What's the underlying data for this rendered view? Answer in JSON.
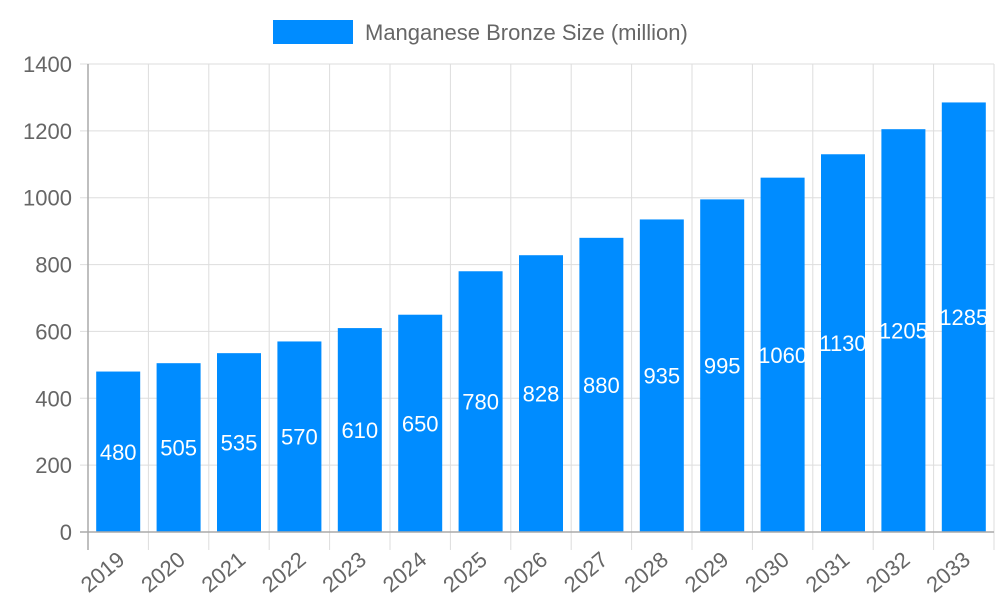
{
  "chart_data": {
    "type": "bar",
    "categories": [
      "2019",
      "2020",
      "2021",
      "2022",
      "2023",
      "2024",
      "2025",
      "2026",
      "2027",
      "2028",
      "2029",
      "2030",
      "2031",
      "2032",
      "2033"
    ],
    "series": [
      {
        "name": "Manganese Bronze Size (million)",
        "values": [
          480,
          505,
          535,
          570,
          610,
          650,
          780,
          828,
          880,
          935,
          995,
          1060,
          1130,
          1205,
          1285
        ],
        "color": "#008CFF"
      }
    ],
    "ylim": [
      0,
      1400
    ],
    "yticks": [
      0,
      200,
      400,
      600,
      800,
      1000,
      1200,
      1400
    ],
    "grid": true,
    "legend_position": "top",
    "data_labels": true,
    "xlabel": "",
    "ylabel": ""
  }
}
